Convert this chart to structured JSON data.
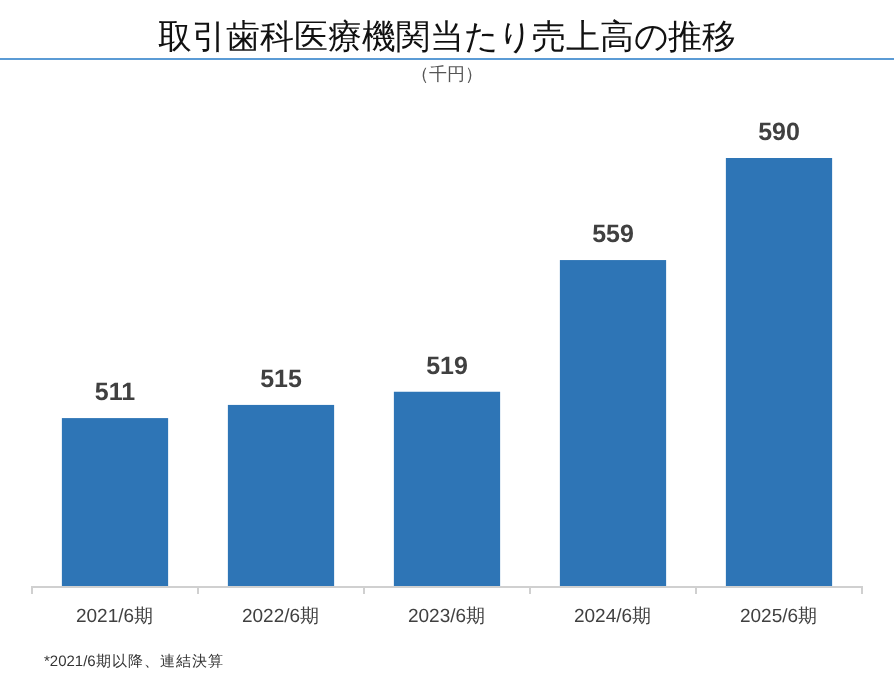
{
  "chart_data": {
    "type": "bar",
    "title": "取引歯科医療機関当たり売上高の推移",
    "subtitle": "（千円）",
    "categories": [
      "2021/6期",
      "2022/6期",
      "2023/6期",
      "2024/6期",
      "2025/6期"
    ],
    "values": [
      511,
      515,
      519,
      559,
      590
    ],
    "color": "#2e75b6",
    "ylim": [
      460,
      590
    ],
    "tick_labels": "x",
    "data_labels": true,
    "annotations": [
      "*2021/6期以降、連結決算"
    ]
  }
}
